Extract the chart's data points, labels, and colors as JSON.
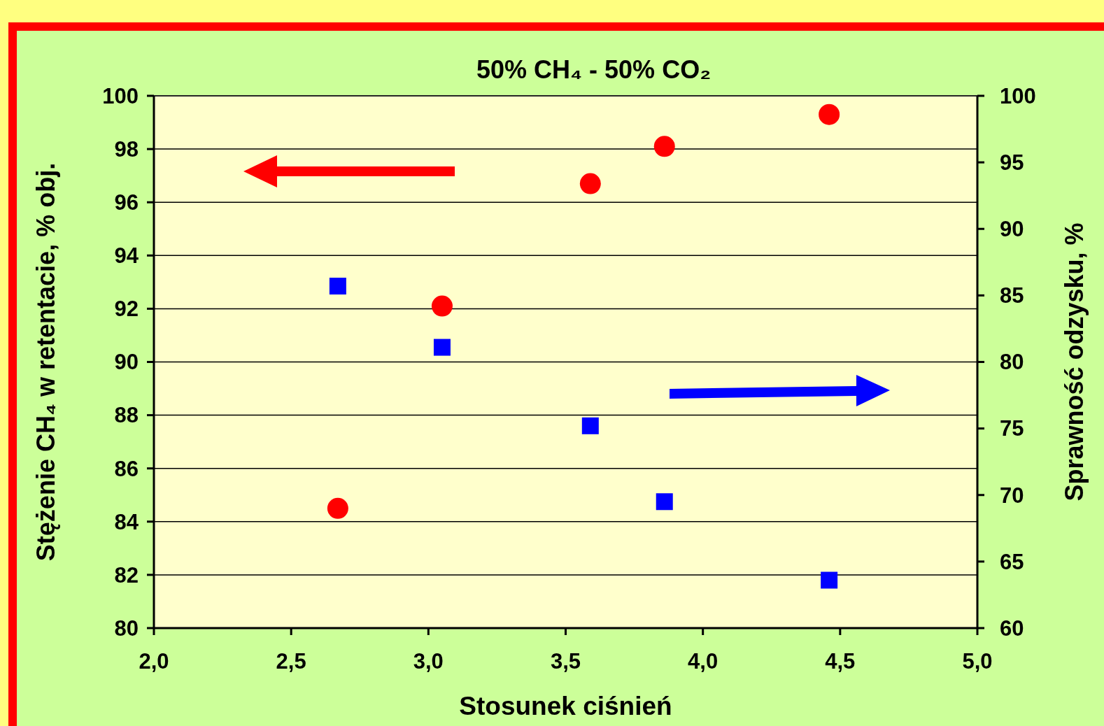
{
  "chart_data": {
    "type": "scatter",
    "title": "50% CH₄ - 50% CO₂",
    "xlabel": "Stosunek ciśnień",
    "ylabel": "Stężenie CH₄ w retentacie, % obj.",
    "y2label": "Sprawność odzysku, %",
    "xlim": [
      2,
      5
    ],
    "xticks": [
      {
        "value": 2,
        "label": "2,0"
      },
      {
        "value": 2.5,
        "label": "2,5"
      },
      {
        "value": 3,
        "label": "3,0"
      },
      {
        "value": 3.5,
        "label": "3,5"
      },
      {
        "value": 4,
        "label": "4,0"
      },
      {
        "value": 4.5,
        "label": "4,5"
      },
      {
        "value": 5,
        "label": "5,0"
      }
    ],
    "ylim": [
      80,
      100
    ],
    "yticks": [
      80,
      82,
      84,
      86,
      88,
      90,
      92,
      94,
      96,
      98,
      100
    ],
    "y2lim": [
      60,
      100
    ],
    "y2ticks": [
      60,
      65,
      70,
      75,
      80,
      85,
      90,
      95,
      100
    ],
    "grid": "y",
    "series": [
      {
        "color": "#ff0000",
        "marker": "circle",
        "x": [
          2.67,
          3.05,
          3.59,
          3.86,
          4.46
        ],
        "values": [
          84.5,
          92.1,
          96.7,
          98.1,
          99.3
        ]
      },
      {
        "color": "#0000ff",
        "marker": "square",
        "axis": "y2",
        "x": [
          2.67,
          3.05,
          3.59,
          3.86,
          4.46
        ],
        "values": [
          85.7,
          81.1,
          75.2,
          69.5,
          63.6
        ]
      }
    ]
  }
}
